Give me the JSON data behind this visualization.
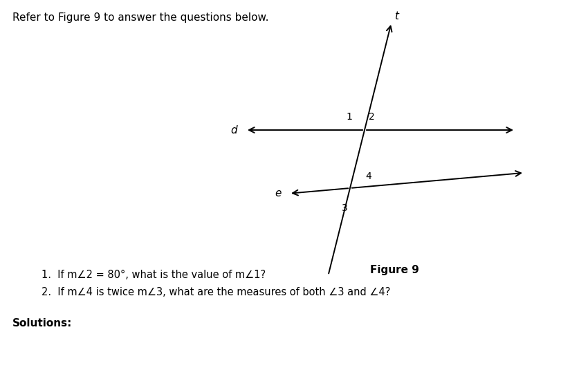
{
  "title_text": "Refer to Figure 9 to answer the questions below.",
  "figure_label": "Figure 9",
  "q1": "1.  If m∠2 = 80°, what is the value of m∠1?",
  "q2": "2.  If m∠4 is twice m∠3, what are the measures of both ∠3 and ∠4?",
  "solutions_label": "Solutions:",
  "background_color": "#ffffff",
  "text_color": "#000000",
  "line_color": "#000000",
  "ix1": 0.635,
  "iy1": 0.695,
  "ix2": 0.595,
  "iy2": 0.53,
  "lw": 1.4
}
